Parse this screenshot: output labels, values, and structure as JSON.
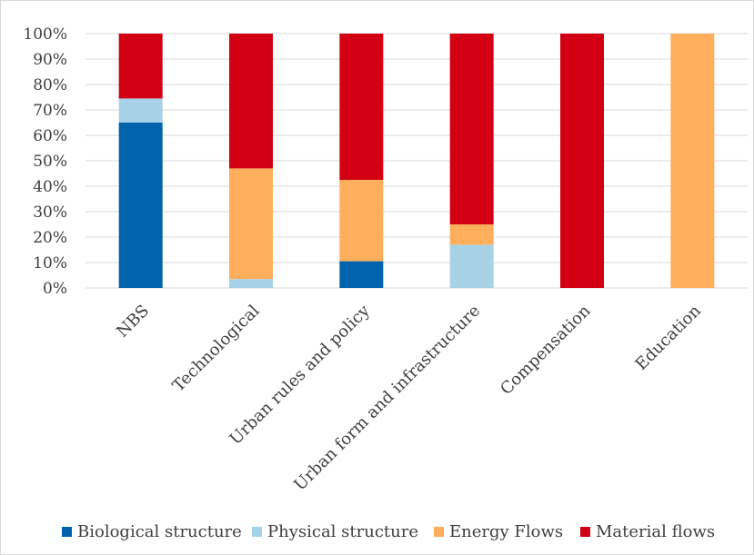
{
  "chart_data": {
    "type": "bar",
    "stacked": true,
    "percent_stacked": true,
    "categories": [
      "NBS",
      "Technological",
      "Urban rules and policy",
      "Urban form and infrastructure",
      "Compensation",
      "Education"
    ],
    "series": [
      {
        "name": "Biological structure",
        "color": "#0063AC",
        "values": [
          65,
          0,
          10.5,
          0,
          0,
          0
        ]
      },
      {
        "name": "Physical structure",
        "color": "#A6D1E6",
        "values": [
          9.5,
          3.5,
          0,
          17,
          0,
          0
        ]
      },
      {
        "name": "Energy Flows",
        "color": "#FFAE5C",
        "values": [
          0,
          43.5,
          32,
          8,
          0,
          100
        ]
      },
      {
        "name": "Material flows",
        "color": "#D20012",
        "values": [
          25.5,
          53,
          57.5,
          75,
          100,
          0
        ]
      }
    ],
    "yticks": [
      "0%",
      "10%",
      "20%",
      "30%",
      "40%",
      "50%",
      "60%",
      "70%",
      "80%",
      "90%",
      "100%"
    ],
    "ylim": [
      0,
      100
    ],
    "grid": true,
    "legend_position": "bottom",
    "title": "",
    "xlabel": "",
    "ylabel": ""
  }
}
